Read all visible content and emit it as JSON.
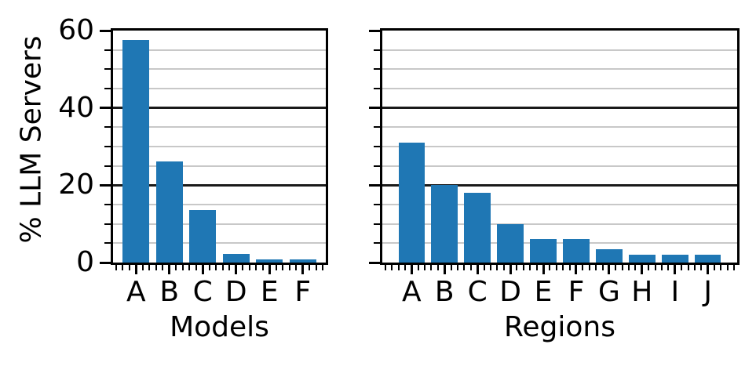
{
  "figure": {
    "background": "#ffffff",
    "text_color": "#000000"
  },
  "chart_data": [
    {
      "type": "bar",
      "title": "",
      "xlabel": "Models",
      "ylabel": "% LLM Servers",
      "categories": [
        "A",
        "B",
        "C",
        "D",
        "E",
        "F"
      ],
      "values": [
        57.5,
        26.2,
        13.5,
        2.3,
        0.8,
        0.8
      ],
      "ylim": [
        0,
        60
      ],
      "yticks": [
        0,
        20,
        40,
        60
      ],
      "ytick_labels": [
        "0",
        "20",
        "40",
        "60"
      ],
      "show_ytick_labels": true,
      "minor_grid_step": 5,
      "grid": "horizontal",
      "legend": "none",
      "bar_color": "#1f77b4",
      "major_grid_color": "#1a1a1a",
      "minor_grid_color": "#c8c8c8",
      "spine_color": "#000000"
    },
    {
      "type": "bar",
      "title": "",
      "xlabel": "Regions",
      "ylabel": "% LLM Servers",
      "categories": [
        "A",
        "B",
        "C",
        "D",
        "E",
        "F",
        "G",
        "H",
        "I",
        "J"
      ],
      "values": [
        31,
        20,
        18,
        10,
        6,
        6,
        3.4,
        2.1,
        2.1,
        2.1
      ],
      "ylim": [
        0,
        60
      ],
      "yticks": [
        0,
        20,
        40,
        60
      ],
      "ytick_labels": [
        "0",
        "20",
        "40",
        "60"
      ],
      "show_ytick_labels": false,
      "minor_grid_step": 5,
      "grid": "horizontal",
      "legend": "none",
      "bar_color": "#1f77b4",
      "major_grid_color": "#1a1a1a",
      "minor_grid_color": "#c8c8c8",
      "spine_color": "#000000"
    }
  ]
}
